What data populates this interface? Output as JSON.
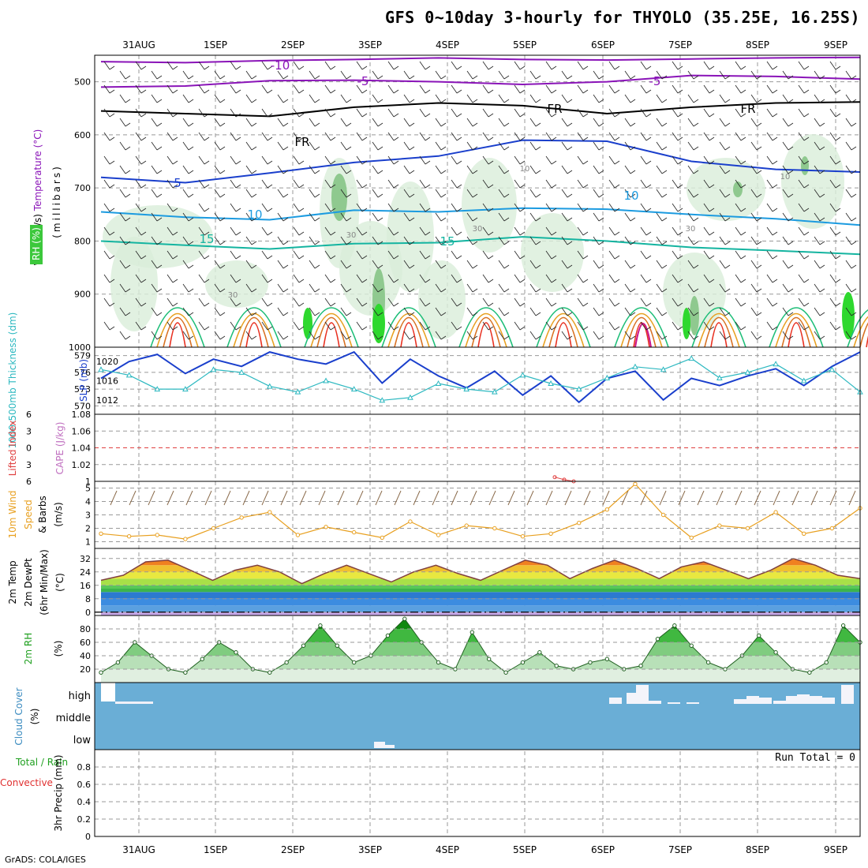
{
  "title": "GFS 0~10day 3-hourly for THYOLO (35.25E, 16.25S)",
  "footer": "GrADS: COLA/IGES",
  "colors": {
    "purple": "#8a14b8",
    "navy": "#1a3fcc",
    "skyblue": "#1c9be0",
    "teal": "#14b4a0",
    "green": "#1ebe78",
    "orange": "#e8a020",
    "darkorange": "#d87020",
    "red": "#e83020",
    "magenta": "#c8148c",
    "cyan": "#2cb8c0",
    "rhgreen": "#3cc83c",
    "cloud": "#6aaed6"
  },
  "chart_data": {
    "type": "meteogram",
    "dates": [
      "31AUG",
      "1SEP",
      "2SEP",
      "3SEP",
      "4SEP",
      "5SEP",
      "6SEP",
      "7SEP",
      "8SEP",
      "9SEP"
    ],
    "panels": [
      {
        "id": "upper_air",
        "labels": [
          "Wind (m/s)",
          "Temperature (°C)",
          "RH (%)",
          "(millibars)"
        ],
        "y_ticks": [
          "500",
          "600",
          "700",
          "800",
          "900",
          "1000"
        ],
        "ylim": [
          450,
          1000
        ],
        "contour_labels": [
          "-10",
          "-5",
          "-5",
          "FR",
          "FR",
          "FR",
          "5",
          "10",
          "10",
          "15",
          "15",
          "30",
          "30",
          "30",
          "30",
          "10",
          "10"
        ],
        "temperature_levels_mb": [
          {
            "label": "-10",
            "values": [
              462,
              464,
              460,
              458,
              455,
              458,
              459,
              457,
              455,
              454
            ]
          },
          {
            "label": "-5",
            "values": [
              510,
              508,
              498,
              497,
              500,
              505,
              500,
              488,
              490,
              495
            ]
          },
          {
            "label": "FR",
            "values": [
              555,
              560,
              565,
              548,
              540,
              545,
              560,
              548,
              540,
              538
            ]
          },
          {
            "label": "5",
            "values": [
              680,
              690,
              672,
              652,
              640,
              610,
              612,
              650,
              665,
              670
            ]
          },
          {
            "label": "10",
            "values": [
              745,
              755,
              760,
              742,
              745,
              738,
              740,
              750,
              758,
              770
            ]
          },
          {
            "label": "15",
            "values": [
              800,
              808,
              815,
              805,
              803,
              792,
              800,
              812,
              818,
              825
            ]
          }
        ]
      },
      {
        "id": "thickness_slp",
        "labels": [
          "1000-500mb Thickness (dm)",
          "SLP (mb)"
        ],
        "left_ticks": [
          "579",
          "576",
          "573",
          "570"
        ],
        "right_ticks": [
          "1020",
          "1016",
          "1012"
        ],
        "slp_mb": [
          1016.5,
          1020.0,
          1021.5,
          1017.5,
          1020.5,
          1019.0,
          1022.0,
          1020.5,
          1019.5,
          1022.0,
          1015.5,
          1020.5,
          1017.0,
          1014.5,
          1018.0,
          1013.0,
          1017.0,
          1011.5,
          1016.5,
          1018.0,
          1012.0,
          1016.5,
          1015.0,
          1017.0,
          1018.5,
          1015.0,
          1019.0,
          1022.0
        ],
        "thickness_dm": [
          576.5,
          575.5,
          573.0,
          573.0,
          576.5,
          576.0,
          573.5,
          572.5,
          574.5,
          573.0,
          571.0,
          571.5,
          574.0,
          573.0,
          572.5,
          575.5,
          574.0,
          573.0,
          575.0,
          577.0,
          576.5,
          578.5,
          575.0,
          576.0,
          577.5,
          574.5,
          576.5,
          572.5
        ]
      },
      {
        "id": "cape_li",
        "labels": [
          "Lifted Index",
          "CAPE (J/kg)"
        ],
        "left_ticks": [
          "6",
          "3",
          "0",
          "3",
          "6"
        ],
        "right_ticks": [
          "1.08",
          "1.06",
          "1.04",
          "1.02",
          "1"
        ],
        "cape_jkg": [
          1.005,
          1.002,
          1.0
        ]
      },
      {
        "id": "wind10m",
        "labels": [
          "10m Wind",
          "Speed",
          "& Barbs",
          "(m/s)"
        ],
        "y_ticks": [
          "5",
          "4",
          "3",
          "2",
          "1"
        ],
        "ylim": [
          0.5,
          5.5
        ],
        "speed_ms": [
          1.6,
          1.4,
          1.5,
          1.2,
          2.0,
          2.8,
          3.2,
          1.5,
          2.1,
          1.7,
          1.3,
          2.5,
          1.5,
          2.2,
          2.0,
          1.4,
          1.6,
          2.4,
          3.4,
          5.3,
          3.0,
          1.3,
          2.2,
          2.0,
          3.2,
          1.6,
          2.0,
          3.5
        ]
      },
      {
        "id": "temp2m",
        "labels": [
          "2m Temp",
          "2m DewPt",
          "(6hr Min/Max)",
          "(°C)"
        ],
        "y_ticks": [
          "32",
          "24",
          "16",
          "8",
          "0"
        ],
        "ylim": [
          -2,
          38
        ],
        "temp_c": [
          19,
          22,
          30,
          31,
          25,
          19,
          25,
          28,
          24,
          17,
          23,
          28,
          23,
          18,
          24,
          28,
          23,
          19,
          25,
          31,
          28,
          20,
          26,
          31,
          26,
          20,
          27,
          30,
          25,
          20,
          25,
          32,
          28,
          22,
          20
        ]
      },
      {
        "id": "rh2m",
        "labels": [
          "2m RH",
          "(%)"
        ],
        "y_ticks": [
          "80",
          "60",
          "40",
          "20"
        ],
        "ylim": [
          0,
          100
        ],
        "rh_percent": [
          15,
          30,
          60,
          40,
          20,
          15,
          35,
          60,
          45,
          20,
          15,
          30,
          55,
          85,
          55,
          30,
          40,
          70,
          95,
          60,
          30,
          20,
          75,
          35,
          15,
          30,
          45,
          25,
          20,
          30,
          35,
          20,
          25,
          65,
          85,
          55,
          30,
          20,
          40,
          70,
          45,
          20,
          15,
          30,
          85,
          60
        ]
      },
      {
        "id": "cloud",
        "labels": [
          "Cloud Cover",
          "(%)"
        ],
        "y_ticks": [
          "high",
          "middle",
          "low"
        ]
      },
      {
        "id": "precip",
        "labels": [
          "Total / Rain",
          "Convective",
          "3hr Precip (mm)"
        ],
        "y_ticks": [
          "0.8",
          "0.6",
          "0.4",
          "0.2",
          "0"
        ],
        "ylim": [
          0,
          1.0
        ],
        "run_total": "Run Total = 0"
      }
    ]
  }
}
